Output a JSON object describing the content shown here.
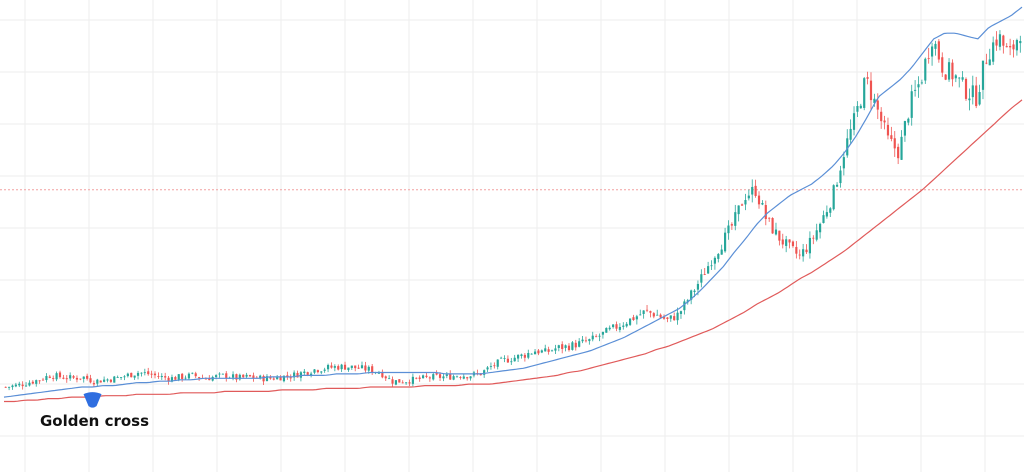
{
  "chart_data": {
    "type": "candlestick",
    "title": "",
    "xlabel": "",
    "ylabel": "",
    "grid": true,
    "legend": "none",
    "colors": {
      "up": "#26a69a",
      "down": "#ef5350",
      "ma_fast": "#5b8fd6",
      "ma_slow": "#e05a5a",
      "grid": "#eeeeee",
      "price_line": "#f2a0a0",
      "marker": "#2f6ee0"
    },
    "close_series": [
      100,
      101,
      103,
      105,
      108,
      107,
      106,
      107,
      104,
      105,
      106,
      108,
      110,
      109,
      107,
      106,
      107,
      108,
      106,
      107,
      108,
      106,
      107,
      106,
      106,
      107,
      108,
      110,
      112,
      113,
      114,
      114,
      113,
      112,
      110,
      104,
      104,
      105,
      106,
      107,
      107,
      108,
      108,
      109,
      114,
      118,
      120,
      122,
      125,
      124,
      127,
      128,
      130,
      132,
      136,
      140,
      144,
      148,
      152,
      150,
      146,
      150,
      162,
      174,
      188,
      200,
      213,
      232,
      236,
      215,
      204,
      196,
      190,
      200,
      215,
      232,
      262,
      285,
      312,
      292,
      270,
      262,
      295,
      312,
      342,
      320,
      315,
      305,
      300,
      330,
      342,
      328,
      346
    ],
    "ma_fast": [
      93,
      94,
      95,
      96,
      97,
      98,
      99,
      100,
      100,
      101,
      101,
      102,
      103,
      103,
      104,
      104,
      105,
      105,
      106,
      106,
      106,
      106,
      106,
      106,
      107,
      107,
      107,
      108,
      108,
      108,
      109,
      109,
      109,
      110,
      110,
      110,
      110,
      110,
      110,
      110,
      109,
      109,
      109,
      109,
      110,
      111,
      112,
      113,
      115,
      117,
      119,
      121,
      123,
      125,
      128,
      131,
      134,
      138,
      142,
      146,
      150,
      154,
      160,
      167,
      175,
      183,
      193,
      202,
      212,
      220,
      226,
      232,
      236,
      240,
      246,
      253,
      262,
      273,
      286,
      300,
      306,
      312,
      320,
      330,
      340,
      344,
      344,
      342,
      340,
      348,
      352,
      356,
      362
    ],
    "ma_slow": [
      90,
      90,
      91,
      91,
      92,
      92,
      93,
      93,
      93,
      94,
      94,
      94,
      95,
      95,
      95,
      95,
      96,
      96,
      96,
      96,
      97,
      97,
      97,
      97,
      97,
      98,
      98,
      98,
      98,
      99,
      99,
      99,
      99,
      100,
      100,
      100,
      100,
      100,
      101,
      101,
      101,
      101,
      102,
      102,
      102,
      103,
      104,
      105,
      106,
      107,
      108,
      110,
      111,
      113,
      115,
      117,
      119,
      121,
      123,
      126,
      128,
      131,
      134,
      137,
      140,
      144,
      148,
      152,
      157,
      161,
      165,
      170,
      175,
      179,
      184,
      189,
      194,
      200,
      206,
      212,
      218,
      224,
      230,
      236,
      243,
      250,
      257,
      264,
      271,
      278,
      285,
      292,
      298
    ],
    "last_price_level": 236,
    "yrange": [
      60,
      360
    ],
    "annotations": [
      {
        "text": "Golden cross",
        "index": 8
      }
    ]
  }
}
